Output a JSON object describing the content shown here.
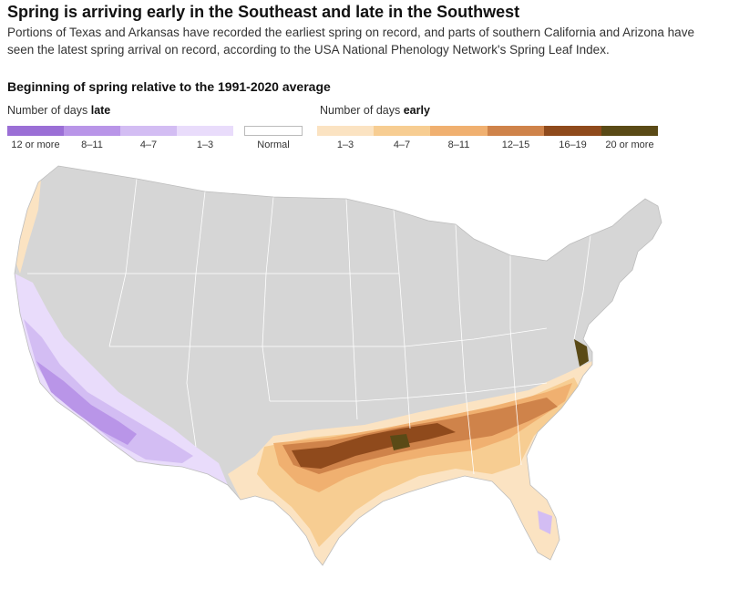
{
  "header": {
    "headline": "Spring is arriving early in the Southeast and late in the Southwest",
    "dek": "Portions of Texas and Arkansas have recorded the earliest spring on record, and parts of southern California and Arizona have seen the latest spring arrival on record, according to the USA National Phenology Network's Spring Leaf Index."
  },
  "legend": {
    "title": "Beginning of spring relative to the 1991-2020 average",
    "late_prefix": "Number of days ",
    "late_word": "late",
    "early_prefix": "Number of days ",
    "early_word": "early",
    "late_bins": [
      {
        "label": "12 or more",
        "color": "#9b6fd6"
      },
      {
        "label": "8–11",
        "color": "#b995e8"
      },
      {
        "label": "4–7",
        "color": "#d3bdf3"
      },
      {
        "label": "1–3",
        "color": "#e9dcfb"
      }
    ],
    "normal": {
      "label": "Normal",
      "color": "#ffffff"
    },
    "early_bins": [
      {
        "label": "1–3",
        "color": "#fbe3c2"
      },
      {
        "label": "4–7",
        "color": "#f7cd92"
      },
      {
        "label": "8–11",
        "color": "#f0b070"
      },
      {
        "label": "12–15",
        "color": "#cf834a"
      },
      {
        "label": "16–19",
        "color": "#8f4a1c"
      },
      {
        "label": "20 or more",
        "color": "#5a4a16"
      }
    ]
  },
  "map": {
    "base_color": "#d6d6d6",
    "border_color": "#ffffff"
  }
}
